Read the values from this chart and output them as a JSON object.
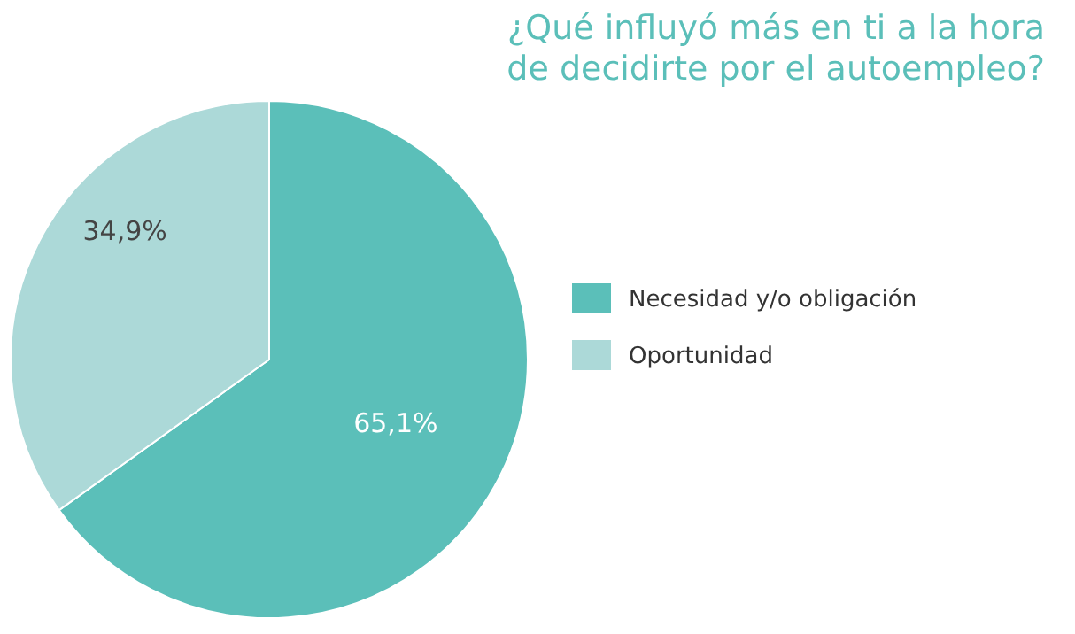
{
  "chart_data": {
    "type": "pie",
    "title": "¿Qué influyó más en ti a la hora de decidirte por el autoempleo?",
    "categories": [
      "Necesidad y/o obligación",
      "Oportunidad"
    ],
    "values": [
      65.1,
      34.9
    ],
    "value_labels": [
      "65,1%",
      "34,9%"
    ],
    "colors": [
      "#5bbfb9",
      "#acd9d8"
    ],
    "legend": "right"
  }
}
